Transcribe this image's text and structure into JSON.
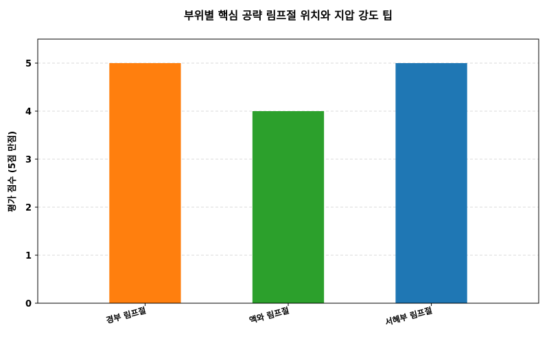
{
  "chart_data": {
    "type": "bar",
    "title": "부위별 핵심 공략 림프절 위치와 지압 강도 팁",
    "xlabel": "",
    "ylabel": "평가 점수 (5점 만점)",
    "categories": [
      "경부 림프절",
      "액와 림프절",
      "서혜부 림프절"
    ],
    "values": [
      5,
      4,
      5
    ],
    "colors": [
      "#ff7f0e",
      "#2ca02c",
      "#1f77b4"
    ],
    "ylim": [
      0,
      5.5
    ],
    "yticks": [
      0,
      1,
      2,
      3,
      4,
      5
    ],
    "grid": true,
    "legend": false
  }
}
